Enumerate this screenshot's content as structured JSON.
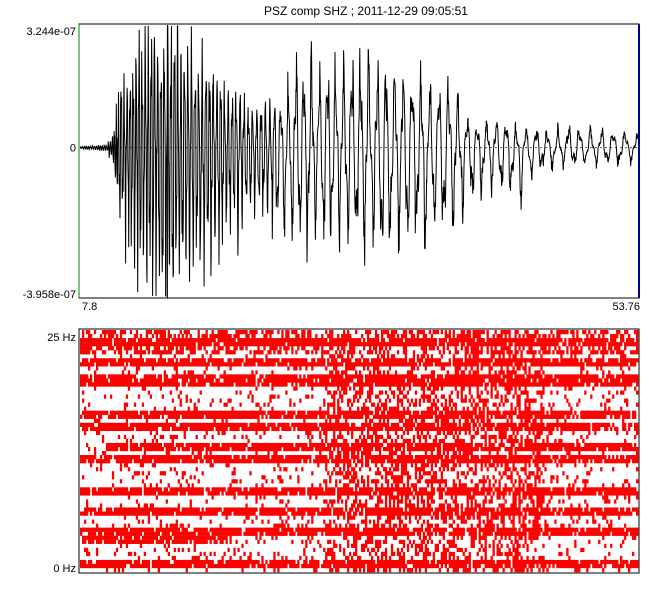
{
  "chart_data": [
    {
      "type": "line",
      "title": "PSZ  comp   SHZ ; 2011-12-29 09:05:51",
      "tick_labels": {
        "y_top": "3.244e-07",
        "y_zero": "0",
        "y_bottom": "-3.958e-07",
        "x_start": "7.8",
        "x_end": "53.76"
      },
      "xlim": [
        7.8,
        53.76
      ],
      "ylim": [
        -3.958e-07,
        3.244e-07
      ],
      "cursor_x": 15.0,
      "zero_line": true,
      "envelope": {
        "x": [
          7.8,
          9.0,
          10.0,
          10.6,
          11.0,
          12.0,
          13.0,
          14.0,
          15.0,
          16.0,
          17.0,
          18.0,
          19.0,
          20.0,
          21.0,
          22.0,
          24.0,
          26.0,
          28.0,
          30.0,
          32.0,
          34.0,
          36.0,
          38.0,
          40.0,
          42.0,
          44.0,
          46.0,
          48.0,
          50.0,
          52.0,
          53.76
        ],
        "upper": [
          3e-09,
          5e-09,
          8e-09,
          4e-08,
          1.6e-07,
          2.2e-07,
          2.8e-07,
          3e-07,
          3.2e-07,
          3e-07,
          2.7e-07,
          2.4e-07,
          2e-07,
          1.5e-07,
          1.2e-07,
          1e-07,
          1.1e-07,
          2.2e-07,
          1.9e-07,
          2.1e-07,
          1.9e-07,
          1.9e-07,
          1.6e-07,
          1.6e-07,
          5e-08,
          7e-08,
          5e-08,
          4e-08,
          5e-08,
          4e-08,
          4e-08,
          3e-08
        ],
        "lower": [
          -3e-09,
          -5e-09,
          -1e-08,
          -4e-08,
          -1.8e-07,
          -2.6e-07,
          -3e-07,
          -3.5e-07,
          -3.9e-07,
          -3.5e-07,
          -3.2e-07,
          -3e-07,
          -2.6e-07,
          -2.2e-07,
          -2e-07,
          -1.6e-07,
          -2e-07,
          -2.3e-07,
          -2.3e-07,
          -2.5e-07,
          -2.3e-07,
          -2.4e-07,
          -2.2e-07,
          -2.1e-07,
          -1.2e-07,
          -9e-08,
          -1.2e-07,
          -5e-08,
          -4e-08,
          -4e-08,
          -4e-08,
          -3e-08
        ]
      }
    },
    {
      "type": "heatmap",
      "title": "",
      "tick_labels": {
        "y_top": "25 Hz",
        "y_bottom": "0 Hz"
      },
      "ylim": [
        0,
        25
      ],
      "xlim": [
        7.8,
        53.76
      ],
      "cell_color": "#ff0000",
      "background": "#ffffff",
      "bands_hz": [
        {
          "f": 1.0,
          "x0": 7.8,
          "x1": 53.76
        },
        {
          "f": 3.2,
          "x0": 7.8,
          "x1": 20.0
        },
        {
          "f": 4.2,
          "x0": 7.8,
          "x1": 53.76
        },
        {
          "f": 6.2,
          "x0": 7.8,
          "x1": 53.76
        },
        {
          "f": 8.4,
          "x0": 7.8,
          "x1": 53.76
        },
        {
          "f": 11.5,
          "x0": 7.8,
          "x1": 53.76
        },
        {
          "f": 12.8,
          "x0": 10.0,
          "x1": 53.76
        },
        {
          "f": 15.0,
          "x0": 7.8,
          "x1": 53.76
        },
        {
          "f": 16.4,
          "x0": 7.8,
          "x1": 53.76
        },
        {
          "f": 19.8,
          "x0": 7.8,
          "x1": 53.76
        },
        {
          "f": 21.8,
          "x0": 7.8,
          "x1": 53.76
        },
        {
          "f": 23.7,
          "x0": 7.8,
          "x1": 53.76
        }
      ]
    }
  ]
}
